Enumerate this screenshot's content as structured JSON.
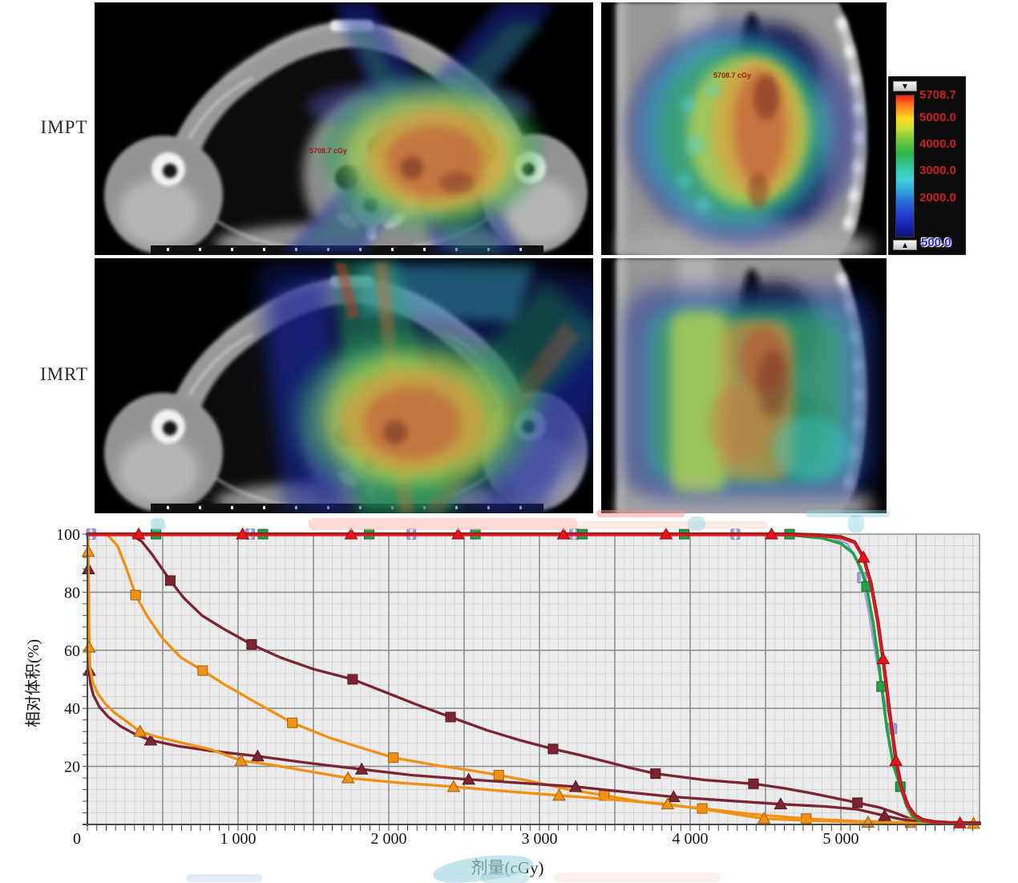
{
  "rows": [
    {
      "label": "IMPT"
    },
    {
      "label": "IMRT"
    }
  ],
  "panels": {
    "impt_axial": {
      "annotation": "5708.7 cGy"
    },
    "impt_sagittal": {
      "annotation": "5708.7 cGy"
    }
  },
  "colorbar": {
    "max_button_icon": "▼",
    "min_button_icon": "▲",
    "scale_labels": [
      "5708.7",
      "5000.0",
      "4000.0",
      "3000.0",
      "2000.0"
    ],
    "min_label": "500.0",
    "label_color": "#c8201d",
    "min_label_color": "#2b2bd0"
  },
  "colors": {
    "red_series": "#e6141f",
    "green_series": "#23a24a",
    "lavender_series": "#9da0da",
    "maroon_series": "#7c2431",
    "orange_series": "#f19114",
    "plot_background": "#ececec",
    "grid_minor": "#d5d5d5",
    "grid_major": "#8f8f8f",
    "axis_line": "#3e4c4a"
  },
  "chart_data": {
    "type": "line",
    "title": "",
    "xlabel": "剂量(cGy)",
    "ylabel": "相对体积(%)",
    "xlim": [
      0,
      5920
    ],
    "ylim": [
      0,
      100
    ],
    "grid": {
      "x_minor": 62.5,
      "x_major": 500,
      "y_minor": 4,
      "y_major": 20,
      "grid_on": true
    },
    "legend": "none",
    "x_ticks": [
      {
        "v": 0,
        "label": "0"
      },
      {
        "v": 1000,
        "label": "1 000"
      },
      {
        "v": 2000,
        "label": "2 000"
      },
      {
        "v": 3000,
        "label": "3 000"
      },
      {
        "v": 4000,
        "label": "4 000"
      },
      {
        "v": 5000,
        "label": "5 000"
      }
    ],
    "y_ticks": [
      {
        "v": 100,
        "label": "100"
      },
      {
        "v": 80,
        "label": "80"
      },
      {
        "v": 60,
        "label": "60"
      },
      {
        "v": 40,
        "label": "40"
      },
      {
        "v": 20,
        "label": "20"
      }
    ],
    "series": [
      {
        "id": "maroon-square",
        "marker": "square",
        "color": "#7c2431",
        "line": [
          [
            0,
            100
          ],
          [
            285,
            100
          ],
          [
            360,
            97.5
          ],
          [
            430,
            93
          ],
          [
            490,
            88.5
          ],
          [
            550,
            84
          ],
          [
            640,
            78
          ],
          [
            760,
            72
          ],
          [
            900,
            67.5
          ],
          [
            1090,
            62
          ],
          [
            1280,
            57.5
          ],
          [
            1500,
            53.5
          ],
          [
            1760,
            50
          ],
          [
            1980,
            45.5
          ],
          [
            2200,
            41
          ],
          [
            2410,
            37
          ],
          [
            2650,
            32.5
          ],
          [
            2870,
            29
          ],
          [
            3090,
            26
          ],
          [
            3260,
            24
          ],
          [
            3430,
            21.8
          ],
          [
            3600,
            19.5
          ],
          [
            3770,
            17.5
          ],
          [
            4100,
            15.3
          ],
          [
            4420,
            14
          ],
          [
            4620,
            12.5
          ],
          [
            4800,
            10.8
          ],
          [
            5110,
            7.5
          ],
          [
            5260,
            5.8
          ],
          [
            5370,
            3.8
          ],
          [
            5470,
            1.8
          ],
          [
            5570,
            0.9
          ],
          [
            5720,
            0.5
          ]
        ],
        "markers": [
          [
            550,
            84
          ],
          [
            1090,
            62
          ],
          [
            1760,
            50
          ],
          [
            2410,
            37
          ],
          [
            3090,
            26
          ],
          [
            3770,
            17.5
          ],
          [
            4420,
            14
          ],
          [
            5110,
            7.5
          ]
        ]
      },
      {
        "id": "orange-square",
        "marker": "square",
        "color": "#f19114",
        "line": [
          [
            0,
            100
          ],
          [
            130,
            100
          ],
          [
            200,
            96
          ],
          [
            260,
            88
          ],
          [
            320,
            79
          ],
          [
            400,
            71.5
          ],
          [
            500,
            64
          ],
          [
            620,
            57.5
          ],
          [
            765,
            53
          ],
          [
            900,
            48.5
          ],
          [
            1100,
            42.5
          ],
          [
            1360,
            35
          ],
          [
            1600,
            30
          ],
          [
            1830,
            26.2
          ],
          [
            2030,
            23
          ],
          [
            2300,
            20.5
          ],
          [
            2550,
            18.6
          ],
          [
            2730,
            17
          ],
          [
            2950,
            14.8
          ],
          [
            3200,
            12
          ],
          [
            3430,
            10
          ],
          [
            3700,
            7.6
          ],
          [
            4080,
            5.5
          ],
          [
            4400,
            3.6
          ],
          [
            4770,
            2
          ],
          [
            5120,
            1.1
          ],
          [
            5460,
            0.6
          ],
          [
            5920,
            0.4
          ]
        ],
        "markers": [
          [
            320,
            79
          ],
          [
            765,
            53
          ],
          [
            1360,
            35
          ],
          [
            2030,
            23
          ],
          [
            2730,
            17
          ],
          [
            3430,
            10
          ],
          [
            4080,
            5.5
          ],
          [
            4770,
            2
          ],
          [
            5460,
            0.6
          ]
        ]
      },
      {
        "id": "maroon-triangle",
        "marker": "triangle",
        "color": "#7c2431",
        "line": [
          [
            2,
            100
          ],
          [
            4,
            96
          ],
          [
            6,
            91
          ],
          [
            7,
            88
          ],
          [
            9,
            76
          ],
          [
            11,
            63
          ],
          [
            13,
            53
          ],
          [
            20,
            48.5
          ],
          [
            40,
            44.5
          ],
          [
            80,
            40.5
          ],
          [
            140,
            37
          ],
          [
            220,
            33.8
          ],
          [
            320,
            31
          ],
          [
            420,
            29
          ],
          [
            600,
            27
          ],
          [
            800,
            25.5
          ],
          [
            960,
            24.5
          ],
          [
            1130,
            23.5
          ],
          [
            1400,
            21.6
          ],
          [
            1620,
            20.2
          ],
          [
            1820,
            19
          ],
          [
            2150,
            17
          ],
          [
            2530,
            15.5
          ],
          [
            2900,
            14.2
          ],
          [
            3240,
            13
          ],
          [
            3570,
            11.2
          ],
          [
            3890,
            9.5
          ],
          [
            4250,
            8.2
          ],
          [
            4600,
            7
          ],
          [
            4900,
            6.2
          ],
          [
            5110,
            5.2
          ],
          [
            5290,
            3
          ],
          [
            5400,
            1.8
          ],
          [
            5520,
            0.9
          ],
          [
            5650,
            0.5
          ]
        ],
        "markers": [
          [
            7,
            88
          ],
          [
            13,
            53
          ],
          [
            420,
            29
          ],
          [
            1130,
            23.5
          ],
          [
            1820,
            19
          ],
          [
            2530,
            15.5
          ],
          [
            3240,
            13
          ],
          [
            3890,
            9.5
          ],
          [
            4600,
            7
          ],
          [
            5290,
            3
          ]
        ]
      },
      {
        "id": "orange-triangle",
        "marker": "triangle",
        "color": "#f19114",
        "line": [
          [
            2,
            100
          ],
          [
            3,
            97
          ],
          [
            5,
            94
          ],
          [
            6,
            90
          ],
          [
            8,
            80
          ],
          [
            10,
            70
          ],
          [
            12,
            61
          ],
          [
            18,
            54
          ],
          [
            35,
            49
          ],
          [
            70,
            45
          ],
          [
            120,
            41.5
          ],
          [
            180,
            38.5
          ],
          [
            260,
            35.5
          ],
          [
            350,
            32
          ],
          [
            460,
            30.2
          ],
          [
            620,
            28.2
          ],
          [
            820,
            25.8
          ],
          [
            1020,
            22
          ],
          [
            1250,
            20.3
          ],
          [
            1480,
            18.2
          ],
          [
            1730,
            16
          ],
          [
            2080,
            14.3
          ],
          [
            2430,
            13
          ],
          [
            2780,
            11.4
          ],
          [
            3130,
            10
          ],
          [
            3500,
            8.5
          ],
          [
            3850,
            7
          ],
          [
            4170,
            4.6
          ],
          [
            4490,
            2
          ],
          [
            4830,
            1.3
          ],
          [
            5180,
            0.7
          ],
          [
            5530,
            0.45
          ],
          [
            5880,
            0.3
          ]
        ],
        "markers": [
          [
            6,
            94
          ],
          [
            12,
            61
          ],
          [
            350,
            32
          ],
          [
            1020,
            22
          ],
          [
            1730,
            16
          ],
          [
            2430,
            13
          ],
          [
            3130,
            10
          ],
          [
            3850,
            7
          ],
          [
            4490,
            2
          ],
          [
            5180,
            0.7
          ],
          [
            5880,
            0.3
          ]
        ]
      },
      {
        "id": "lavender-square",
        "marker": "lavender",
        "color": "#9da0da",
        "line": [
          [
            0,
            100
          ],
          [
            4750,
            100
          ],
          [
            4920,
            99.2
          ],
          [
            5040,
            96.8
          ],
          [
            5100,
            92
          ],
          [
            5140,
            85
          ],
          [
            5185,
            73
          ],
          [
            5235,
            57
          ],
          [
            5285,
            44
          ],
          [
            5340,
            33
          ],
          [
            5385,
            19
          ],
          [
            5425,
            10
          ],
          [
            5475,
            4
          ],
          [
            5530,
            1.5
          ],
          [
            5600,
            0.8
          ]
        ],
        "markers": [
          [
            25,
            100
          ],
          [
            1080,
            100
          ],
          [
            2150,
            100
          ],
          [
            3230,
            100
          ],
          [
            4300,
            100
          ],
          [
            5140,
            85
          ],
          [
            5340,
            33
          ]
        ]
      },
      {
        "id": "green-square",
        "marker": "square",
        "color": "#23a24a",
        "line": [
          [
            0,
            100
          ],
          [
            4450,
            100
          ],
          [
            4700,
            99.5
          ],
          [
            4880,
            98.6
          ],
          [
            5000,
            96.8
          ],
          [
            5080,
            93.5
          ],
          [
            5130,
            88.5
          ],
          [
            5170,
            82
          ],
          [
            5215,
            69
          ],
          [
            5245,
            58
          ],
          [
            5270,
            47.5
          ],
          [
            5305,
            33
          ],
          [
            5350,
            20
          ],
          [
            5395,
            13
          ],
          [
            5435,
            6.5
          ],
          [
            5475,
            2.8
          ],
          [
            5530,
            1.2
          ],
          [
            5620,
            0.6
          ],
          [
            5780,
            0.4
          ]
        ],
        "markers": [
          [
            455,
            100
          ],
          [
            1165,
            100
          ],
          [
            1870,
            100
          ],
          [
            2575,
            100
          ],
          [
            3285,
            100
          ],
          [
            3960,
            100
          ],
          [
            4660,
            100
          ],
          [
            5170,
            82
          ],
          [
            5270,
            47.5
          ],
          [
            5395,
            13
          ]
        ]
      },
      {
        "id": "red-triangle",
        "marker": "triangle",
        "color": "#e6141f",
        "line": [
          [
            0,
            100
          ],
          [
            4650,
            100
          ],
          [
            4850,
            99.7
          ],
          [
            5000,
            99
          ],
          [
            5090,
            97.3
          ],
          [
            5150,
            92
          ],
          [
            5200,
            83
          ],
          [
            5245,
            70
          ],
          [
            5280,
            57
          ],
          [
            5320,
            40
          ],
          [
            5365,
            22
          ],
          [
            5400,
            13
          ],
          [
            5445,
            6.5
          ],
          [
            5490,
            3.2
          ],
          [
            5545,
            1.6
          ],
          [
            5620,
            0.9
          ],
          [
            5720,
            0.6
          ],
          [
            5920,
            0.5
          ]
        ],
        "markers": [
          [
            340,
            100
          ],
          [
            1030,
            100
          ],
          [
            1750,
            100
          ],
          [
            2460,
            100
          ],
          [
            3160,
            100
          ],
          [
            3840,
            100
          ],
          [
            4540,
            100
          ],
          [
            5150,
            92
          ],
          [
            5280,
            57
          ],
          [
            5365,
            22
          ],
          [
            5790,
            0.5
          ]
        ]
      }
    ]
  }
}
